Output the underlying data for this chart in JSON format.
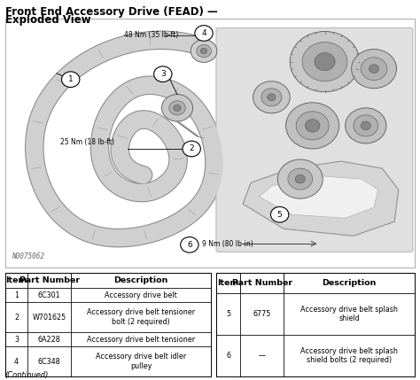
{
  "title_line1": "Front End Accessory Drive (FEAD) —",
  "title_line2": "Exploded View",
  "bg_color": "#ffffff",
  "watermark": "N0075062",
  "continued_text": "(Continued)",
  "ann_48nm": "48 Nm (35 lb-ft)",
  "ann_25nm": "25 Nm (18 lb-ft)",
  "ann_9nm": "9 Nm (80 lb-in)",
  "table1": {
    "headers": [
      "Item",
      "Part Number",
      "Description"
    ],
    "rows": [
      [
        "1",
        "6C301",
        "Accessory drive belt"
      ],
      [
        "2",
        "W701625",
        "Accessory drive belt tensioner\nbolt (2 required)"
      ],
      [
        "3",
        "6A228",
        "Accessory drive belt tensioner"
      ],
      [
        "4",
        "6C348",
        "Accessory drive belt idler\npulley"
      ]
    ]
  },
  "table2": {
    "headers": [
      "Item",
      "Part Number",
      "Description"
    ],
    "rows": [
      [
        "5",
        "6775",
        "Accessory drive belt splash\nshield"
      ],
      [
        "6",
        "—",
        "Accessory drive belt splash\nshield bolts (2 required)"
      ]
    ]
  },
  "font_color": "#000000",
  "title_fontsize": 8.5,
  "table_fontsize": 6.5,
  "header_fontsize": 7,
  "belt_color": "#d8d8d8",
  "belt_edge": "#999999",
  "diagram_bg": "#ffffff"
}
